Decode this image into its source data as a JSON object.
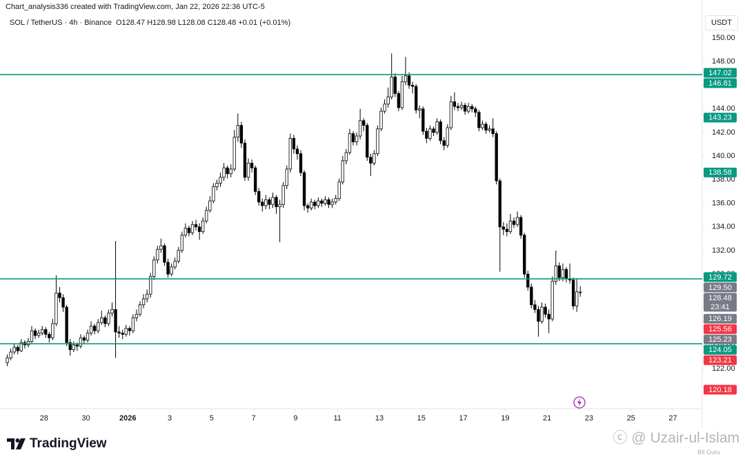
{
  "header": {
    "credit": "Chart_analysis336 created with TradingView.com, Jan 22, 2026 22:36 UTC-5",
    "symbol": "SOL / TetherUS · 4h · Binance",
    "ohlc": "O128.47 H128.98 L128.08 C128.48 +0.01 (+0.01%)"
  },
  "chart_data": {
    "type": "candlestick",
    "currency": "USDT",
    "up_color": "#ffffff",
    "down_color": "#000000",
    "outline_color": "#000000",
    "xlim": [
      0,
      199
    ],
    "xticks": [
      {
        "value": 11,
        "label": "28"
      },
      {
        "value": 23,
        "label": "30"
      },
      {
        "value": 35,
        "label": "2026",
        "bold": true
      },
      {
        "value": 47,
        "label": "3"
      },
      {
        "value": 59,
        "label": "5"
      },
      {
        "value": 71,
        "label": "7"
      },
      {
        "value": 83,
        "label": "9"
      },
      {
        "value": 95,
        "label": "11"
      },
      {
        "value": 107,
        "label": "13"
      },
      {
        "value": 119,
        "label": "15"
      },
      {
        "value": 131,
        "label": "17"
      },
      {
        "value": 143,
        "label": "19"
      },
      {
        "value": 155,
        "label": "21"
      },
      {
        "value": 167,
        "label": "23"
      },
      {
        "value": 179,
        "label": "25"
      },
      {
        "value": 191,
        "label": "27"
      }
    ],
    "ylim": [
      118.6,
      152.05
    ],
    "yticks": [
      {
        "value": 122,
        "label": "122.00"
      },
      {
        "value": 124,
        "label": "124.00"
      },
      {
        "value": 126,
        "label": "126.00"
      },
      {
        "value": 128,
        "label": "128.00"
      },
      {
        "value": 130,
        "label": "130.00"
      },
      {
        "value": 132,
        "label": "132.00"
      },
      {
        "value": 134,
        "label": "134.00"
      },
      {
        "value": 136,
        "label": "136.00"
      },
      {
        "value": 138,
        "label": "138.00"
      },
      {
        "value": 140,
        "label": "140.00"
      },
      {
        "value": 142,
        "label": "142.00"
      },
      {
        "value": 144,
        "label": "144.00"
      },
      {
        "value": 146,
        "label": "146.00"
      },
      {
        "value": 148,
        "label": "148.00"
      },
      {
        "value": 150,
        "label": "150.00"
      }
    ],
    "levels": {
      "color": "#089981",
      "values": [
        146.9,
        129.6,
        124.1
      ]
    },
    "price_badges": [
      {
        "value": 147.02,
        "color": "#089981"
      },
      {
        "value": 146.81,
        "color": "#089981"
      },
      {
        "value": 143.23,
        "color": "#089981"
      },
      {
        "value": 138.58,
        "color": "#089981"
      },
      {
        "value": 129.72,
        "color": "#089981"
      },
      {
        "value": 129.5,
        "label": "129.50",
        "color": "#787b86"
      },
      {
        "value": 128.48,
        "color": "#787b86",
        "sublabel": "23:41"
      },
      {
        "value": 126.19,
        "color": "#787b86"
      },
      {
        "value": 125.56,
        "color": "#f23645"
      },
      {
        "value": 125.23,
        "color": "#787b86"
      },
      {
        "value": 124.05,
        "color": "#089981"
      },
      {
        "value": 123.21,
        "color": "#f23645"
      },
      {
        "value": 120.18,
        "color": "#f23645"
      }
    ],
    "candles": [
      [
        122.5,
        123.2,
        122.2,
        122.9
      ],
      [
        122.9,
        123.7,
        122.7,
        123.4
      ],
      [
        123.4,
        124.1,
        123.2,
        123.8
      ],
      [
        123.8,
        124.0,
        123.2,
        123.5
      ],
      [
        123.5,
        124.5,
        123.4,
        124.2
      ],
      [
        124.2,
        124.4,
        123.7,
        124.0
      ],
      [
        124.0,
        124.6,
        123.8,
        124.3
      ],
      [
        124.3,
        125.6,
        124.1,
        125.2
      ],
      [
        125.2,
        125.4,
        124.5,
        124.8
      ],
      [
        124.8,
        125.3,
        124.6,
        125.0
      ],
      [
        125.0,
        125.6,
        124.8,
        125.3
      ],
      [
        125.3,
        125.5,
        124.6,
        124.9
      ],
      [
        124.9,
        125.1,
        124.2,
        124.6
      ],
      [
        124.6,
        126.2,
        124.4,
        125.8
      ],
      [
        125.8,
        129.9,
        125.6,
        128.4
      ],
      [
        128.4,
        128.9,
        127.6,
        128.0
      ],
      [
        128.0,
        128.3,
        126.8,
        127.2
      ],
      [
        127.2,
        127.4,
        123.9,
        124.2
      ],
      [
        124.2,
        124.5,
        123.1,
        123.6
      ],
      [
        123.6,
        124.3,
        123.4,
        124.0
      ],
      [
        124.0,
        124.2,
        123.5,
        123.9
      ],
      [
        123.9,
        124.9,
        123.7,
        124.6
      ],
      [
        124.6,
        124.8,
        124.1,
        124.4
      ],
      [
        124.4,
        125.3,
        124.2,
        125.0
      ],
      [
        125.0,
        126.0,
        124.8,
        125.6
      ],
      [
        125.6,
        125.8,
        124.9,
        125.2
      ],
      [
        125.2,
        126.2,
        125.0,
        125.9
      ],
      [
        125.9,
        126.9,
        125.7,
        126.3
      ],
      [
        126.3,
        126.5,
        125.5,
        125.8
      ],
      [
        125.8,
        127.0,
        125.6,
        126.7
      ],
      [
        126.7,
        127.6,
        126.4,
        127.0
      ],
      [
        127.0,
        132.8,
        122.9,
        125.1
      ],
      [
        125.1,
        125.6,
        124.6,
        125.0
      ],
      [
        125.0,
        125.3,
        124.5,
        124.9
      ],
      [
        124.9,
        125.7,
        124.7,
        125.4
      ],
      [
        125.4,
        125.6,
        124.8,
        125.2
      ],
      [
        125.2,
        126.6,
        125.0,
        126.3
      ],
      [
        126.3,
        127.0,
        126.0,
        126.6
      ],
      [
        126.6,
        127.7,
        126.4,
        127.4
      ],
      [
        127.4,
        128.3,
        127.1,
        127.9
      ],
      [
        127.9,
        128.7,
        127.6,
        128.3
      ],
      [
        128.3,
        130.1,
        128.0,
        129.8
      ],
      [
        129.8,
        131.5,
        129.5,
        131.2
      ],
      [
        131.2,
        132.4,
        130.9,
        132.1
      ],
      [
        132.1,
        133.0,
        131.8,
        132.4
      ],
      [
        132.4,
        132.6,
        130.7,
        131.0
      ],
      [
        131.0,
        131.3,
        129.7,
        130.0
      ],
      [
        130.0,
        130.9,
        129.8,
        130.6
      ],
      [
        130.6,
        131.4,
        130.4,
        131.1
      ],
      [
        131.1,
        132.3,
        130.9,
        132.0
      ],
      [
        132.0,
        133.6,
        131.8,
        133.3
      ],
      [
        133.3,
        134.3,
        133.1,
        133.9
      ],
      [
        133.9,
        134.1,
        133.2,
        133.5
      ],
      [
        133.5,
        134.5,
        133.3,
        134.2
      ],
      [
        134.2,
        134.6,
        133.7,
        134.0
      ],
      [
        134.0,
        134.3,
        132.9,
        133.6
      ],
      [
        133.6,
        134.8,
        133.4,
        134.5
      ],
      [
        134.5,
        135.7,
        134.3,
        135.4
      ],
      [
        135.4,
        136.6,
        135.2,
        136.2
      ],
      [
        136.2,
        137.7,
        136.0,
        137.4
      ],
      [
        137.4,
        138.0,
        137.1,
        137.7
      ],
      [
        137.7,
        138.6,
        137.4,
        138.2
      ],
      [
        138.2,
        139.4,
        137.9,
        139.0
      ],
      [
        139.0,
        139.2,
        138.1,
        138.5
      ],
      [
        138.5,
        139.3,
        138.2,
        138.9
      ],
      [
        138.9,
        142.2,
        138.7,
        141.6
      ],
      [
        141.6,
        143.6,
        141.2,
        142.6
      ],
      [
        142.6,
        142.9,
        140.7,
        141.1
      ],
      [
        141.1,
        141.4,
        137.9,
        138.2
      ],
      [
        138.2,
        139.8,
        137.9,
        139.4
      ],
      [
        139.4,
        139.7,
        138.6,
        139.0
      ],
      [
        139.0,
        139.2,
        136.7,
        137.0
      ],
      [
        137.0,
        137.3,
        135.8,
        136.1
      ],
      [
        136.1,
        136.4,
        135.3,
        135.8
      ],
      [
        135.8,
        136.7,
        135.5,
        136.3
      ],
      [
        136.3,
        136.5,
        135.5,
        135.9
      ],
      [
        135.9,
        136.9,
        135.6,
        136.5
      ],
      [
        136.5,
        136.7,
        135.1,
        135.7
      ],
      [
        135.7,
        136.3,
        132.7,
        135.9
      ],
      [
        135.9,
        137.8,
        135.6,
        137.5
      ],
      [
        137.5,
        139.2,
        137.2,
        138.9
      ],
      [
        138.9,
        141.9,
        138.6,
        141.5
      ],
      [
        141.5,
        141.8,
        140.2,
        140.6
      ],
      [
        140.6,
        140.9,
        139.7,
        140.2
      ],
      [
        140.2,
        140.5,
        138.3,
        138.6
      ],
      [
        138.6,
        138.8,
        135.4,
        135.8
      ],
      [
        135.8,
        136.0,
        135.2,
        135.6
      ],
      [
        135.6,
        136.4,
        135.4,
        136.1
      ],
      [
        136.1,
        136.3,
        135.5,
        135.8
      ],
      [
        135.8,
        136.5,
        135.6,
        136.2
      ],
      [
        136.2,
        136.4,
        135.7,
        136.0
      ],
      [
        136.0,
        136.6,
        135.8,
        136.3
      ],
      [
        136.3,
        136.5,
        135.6,
        135.9
      ],
      [
        135.9,
        136.4,
        135.6,
        136.1
      ],
      [
        136.1,
        136.7,
        135.9,
        136.4
      ],
      [
        136.4,
        138.1,
        136.2,
        137.8
      ],
      [
        137.8,
        140.0,
        137.6,
        139.6
      ],
      [
        139.6,
        140.6,
        139.3,
        140.3
      ],
      [
        140.3,
        142.3,
        140.1,
        141.9
      ],
      [
        141.9,
        142.1,
        140.9,
        141.2
      ],
      [
        141.2,
        142.0,
        140.9,
        141.7
      ],
      [
        141.7,
        144.0,
        141.4,
        143.0
      ],
      [
        143.0,
        143.2,
        142.1,
        142.6
      ],
      [
        142.6,
        142.8,
        139.6,
        139.9
      ],
      [
        139.9,
        140.2,
        138.3,
        139.4
      ],
      [
        139.4,
        140.5,
        139.2,
        140.2
      ],
      [
        140.2,
        142.6,
        140.0,
        142.3
      ],
      [
        142.3,
        144.1,
        142.1,
        143.8
      ],
      [
        143.8,
        144.8,
        143.6,
        144.4
      ],
      [
        144.4,
        145.8,
        144.1,
        145.0
      ],
      [
        145.0,
        148.7,
        144.8,
        146.7
      ],
      [
        146.7,
        147.0,
        145.0,
        145.3
      ],
      [
        145.3,
        145.5,
        143.8,
        144.1
      ],
      [
        144.1,
        146.8,
        143.9,
        146.3
      ],
      [
        146.3,
        148.4,
        146.0,
        146.8
      ],
      [
        146.8,
        147.1,
        145.7,
        146.0
      ],
      [
        146.0,
        146.3,
        145.3,
        145.9
      ],
      [
        145.9,
        146.1,
        143.6,
        143.9
      ],
      [
        143.9,
        144.3,
        143.2,
        144.0
      ],
      [
        144.0,
        144.2,
        141.8,
        142.1
      ],
      [
        142.1,
        142.4,
        141.1,
        141.5
      ],
      [
        141.5,
        142.6,
        141.3,
        142.3
      ],
      [
        142.3,
        142.5,
        141.7,
        142.0
      ],
      [
        142.0,
        143.2,
        141.8,
        142.9
      ],
      [
        142.9,
        143.1,
        141.0,
        141.3
      ],
      [
        141.3,
        141.6,
        140.5,
        140.9
      ],
      [
        140.9,
        142.7,
        140.7,
        142.4
      ],
      [
        142.4,
        145.1,
        142.2,
        144.6
      ],
      [
        144.6,
        145.4,
        143.9,
        144.2
      ],
      [
        144.2,
        144.5,
        143.8,
        144.1
      ],
      [
        144.1,
        144.6,
        143.9,
        144.3
      ],
      [
        144.3,
        144.5,
        143.5,
        143.8
      ],
      [
        143.8,
        144.5,
        143.6,
        144.2
      ],
      [
        144.2,
        144.4,
        143.7,
        144.0
      ],
      [
        144.0,
        144.2,
        143.3,
        143.7
      ],
      [
        143.7,
        143.9,
        142.1,
        142.4
      ],
      [
        142.4,
        143.0,
        142.2,
        142.7
      ],
      [
        142.7,
        142.9,
        141.9,
        142.2
      ],
      [
        142.2,
        142.6,
        142.0,
        142.3
      ],
      [
        142.3,
        143.2,
        141.6,
        141.9
      ],
      [
        141.9,
        142.1,
        137.6,
        137.9
      ],
      [
        137.9,
        138.1,
        130.2,
        134.0
      ],
      [
        134.0,
        134.4,
        133.3,
        133.8
      ],
      [
        133.8,
        134.3,
        133.2,
        133.6
      ],
      [
        133.6,
        135.1,
        133.4,
        134.5
      ],
      [
        134.5,
        134.8,
        133.9,
        134.2
      ],
      [
        134.2,
        135.3,
        134.0,
        134.8
      ],
      [
        134.8,
        135.0,
        133.0,
        133.3
      ],
      [
        133.3,
        133.5,
        129.7,
        130.0
      ],
      [
        130.0,
        130.3,
        128.6,
        128.9
      ],
      [
        128.9,
        129.2,
        127.1,
        127.4
      ],
      [
        127.4,
        127.8,
        126.7,
        127.0
      ],
      [
        127.0,
        127.3,
        124.7,
        126.0
      ],
      [
        126.0,
        127.6,
        125.8,
        127.2
      ],
      [
        127.2,
        127.5,
        126.3,
        126.6
      ],
      [
        126.6,
        127.0,
        125.0,
        126.2
      ],
      [
        126.2,
        129.8,
        126.0,
        129.4
      ],
      [
        129.4,
        132.0,
        129.1,
        130.7
      ],
      [
        130.7,
        131.0,
        129.4,
        129.7
      ],
      [
        129.7,
        130.9,
        129.4,
        130.4
      ],
      [
        130.4,
        130.6,
        129.3,
        129.6
      ],
      [
        129.6,
        130.9,
        129.2,
        129.5
      ],
      [
        129.5,
        129.7,
        127.0,
        127.3
      ],
      [
        127.3,
        129.6,
        126.8,
        128.5
      ],
      [
        128.47,
        128.98,
        128.08,
        128.48
      ]
    ]
  },
  "footer": {
    "brand": "TradingView",
    "watermark": "ⓒ @ Uzair-ul-Islam",
    "watermark_sub": "Bit Guru"
  }
}
